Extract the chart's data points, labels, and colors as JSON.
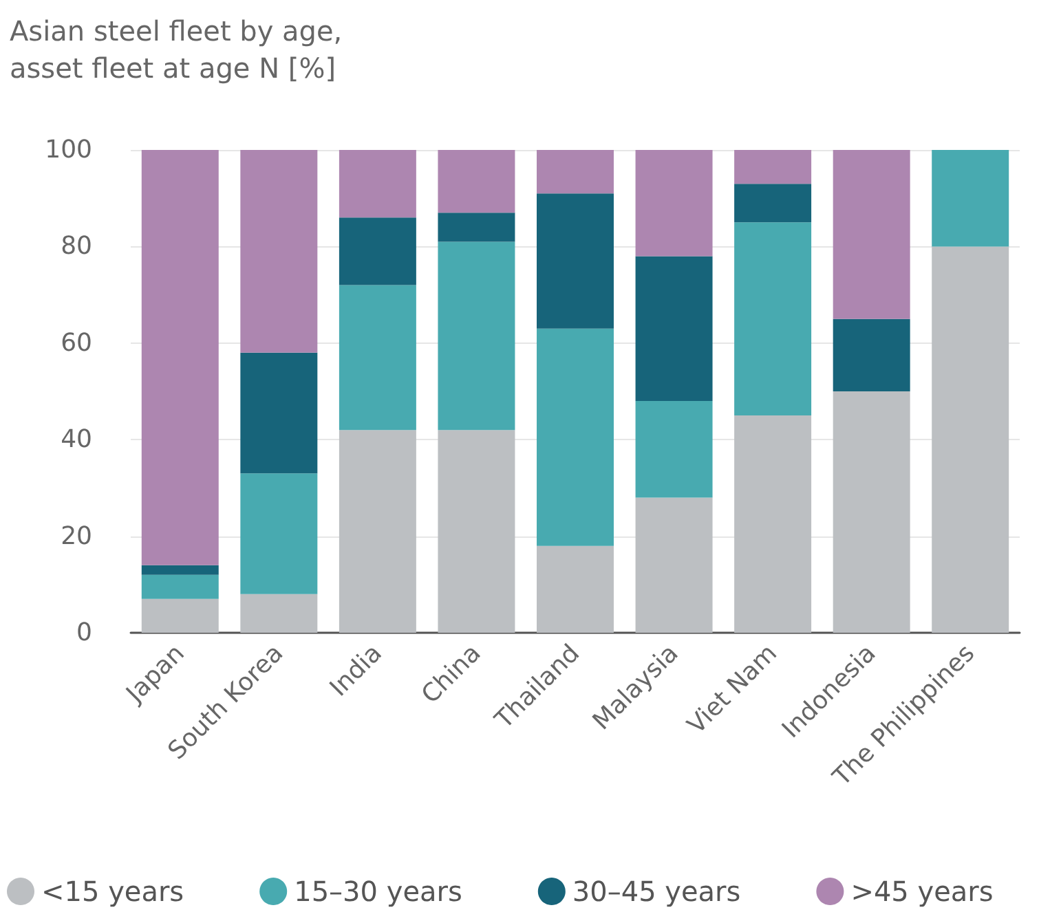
{
  "chart_data": {
    "type": "bar",
    "title": "Asian steel fleet by age,\nasset fleet at age N [%]",
    "categories": [
      "Japan",
      "South Korea",
      "India",
      "China",
      "Thailand",
      "Malaysia",
      "Viet Nam",
      "Indonesia",
      "The Philippines"
    ],
    "stacked": true,
    "series": [
      {
        "name": "<15 years",
        "color": "#bcbfc2",
        "values": [
          7,
          8,
          42,
          42,
          18,
          28,
          45,
          50,
          80
        ]
      },
      {
        "name": "15–30 years",
        "color": "#48aab0",
        "values": [
          5,
          25,
          30,
          39,
          45,
          20,
          40,
          0,
          20
        ]
      },
      {
        "name": "30–45 years",
        "color": "#17647a",
        "values": [
          2,
          25,
          14,
          6,
          28,
          30,
          8,
          15,
          0
        ]
      },
      {
        "name": ">45 years",
        "color": "#ad86b0",
        "values": [
          86,
          42,
          14,
          13,
          9,
          22,
          7,
          35,
          0
        ]
      }
    ],
    "ylim": [
      0,
      100
    ],
    "yticks": [
      0,
      20,
      40,
      60,
      80,
      100
    ],
    "grid": "y",
    "legend": "bottom"
  }
}
